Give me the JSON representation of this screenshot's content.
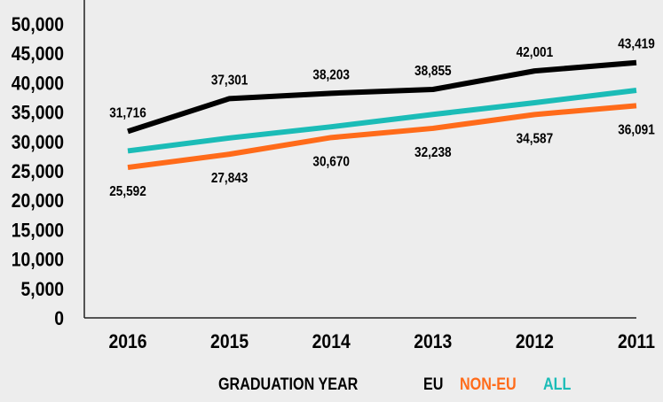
{
  "chart_data": {
    "type": "line",
    "title": "",
    "xlabel": "GRADUATION YEAR",
    "ylabel": "",
    "categories": [
      "2016",
      "2015",
      "2014",
      "2013",
      "2012",
      "2011"
    ],
    "ylim": [
      0,
      50000
    ],
    "yticks": [
      "0",
      "5,000",
      "10,000",
      "15,000",
      "20,000",
      "25,000",
      "30,000",
      "35,000",
      "40,000",
      "45,000",
      "50,000"
    ],
    "grid": false,
    "legend_position": "bottom",
    "series": [
      {
        "name": "EU",
        "color": "#000000",
        "values": [
          31716,
          37301,
          38203,
          38855,
          42001,
          43419
        ],
        "labels": [
          "31,716",
          "37,301",
          "38,203",
          "38,855",
          "42,001",
          "43,419"
        ],
        "label_pos": "above"
      },
      {
        "name": "NON-EU",
        "color": "#ff6b1a",
        "values": [
          25592,
          27843,
          30670,
          32238,
          34587,
          36091
        ],
        "labels": [
          "25,592",
          "27,843",
          "30,670",
          "32,238",
          "34,587",
          "36,091"
        ],
        "label_pos": "below"
      },
      {
        "name": "ALL",
        "color": "#1bbcb7",
        "values": [
          28400,
          30600,
          32500,
          34600,
          36600,
          38700
        ],
        "labels": null
      }
    ]
  }
}
